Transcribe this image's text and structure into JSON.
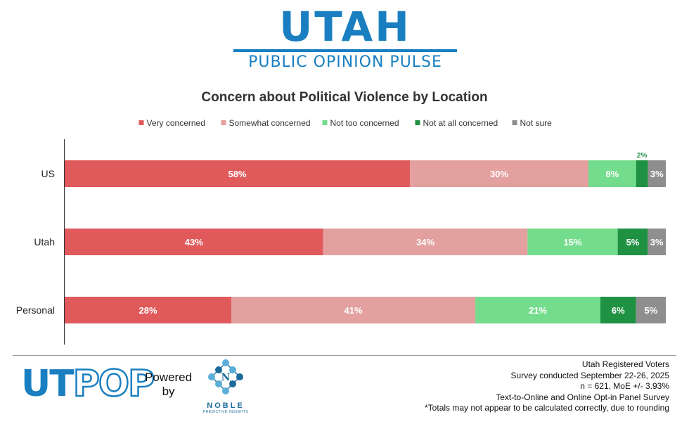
{
  "header": {
    "brand_title": "UTAH",
    "brand_subtitle": "PUBLIC OPINION PULSE"
  },
  "colors": {
    "very_concerned": "#e05a5c",
    "somewhat_concerned": "#e3a09f",
    "not_too_concerned": "#74dd8d",
    "not_at_all_concerned": "#1f9142",
    "not_sure": "#8e8e8e",
    "brand_blue": "#1a7fc1"
  },
  "chart_data": {
    "type": "bar",
    "orientation": "horizontal",
    "stacked": true,
    "title": "Concern about Political Violence by Location",
    "categories": [
      "US",
      "Utah",
      "Personal"
    ],
    "series": [
      {
        "name": "Very concerned",
        "values": [
          58,
          43,
          28
        ],
        "labels": [
          "58%",
          "43%",
          "28%"
        ]
      },
      {
        "name": "Somewhat concerned",
        "values": [
          30,
          34,
          41
        ],
        "labels": [
          "30%",
          "34%",
          "41%"
        ]
      },
      {
        "name": "Not too concerned",
        "values": [
          8,
          15,
          21
        ],
        "labels": [
          "8%",
          "15%",
          "21%"
        ]
      },
      {
        "name": "Not at all concerned",
        "values": [
          2,
          5,
          6
        ],
        "labels": [
          "2%",
          "5%",
          "6%"
        ]
      },
      {
        "name": "Not sure",
        "values": [
          3,
          3,
          5
        ],
        "labels": [
          "3%",
          "3%",
          "5%"
        ]
      }
    ],
    "legend_position": "top",
    "grid": false
  },
  "footer": {
    "logo_ut": "UT",
    "logo_pop": "POP",
    "powered_line1": "Powered",
    "powered_line2": "by",
    "partner_name": "NOBLE",
    "partner_sub": "PREDICTIVE INSIGHTS",
    "notes": [
      "Utah Registered Voters",
      "Survey conducted September 22-26, 2025",
      "n = 621, MoE +/- 3.93%",
      "Text-to-Online and Online Opt-in Panel Survey",
      "*Totals may not appear to be calculated correctly, due to rounding"
    ]
  }
}
